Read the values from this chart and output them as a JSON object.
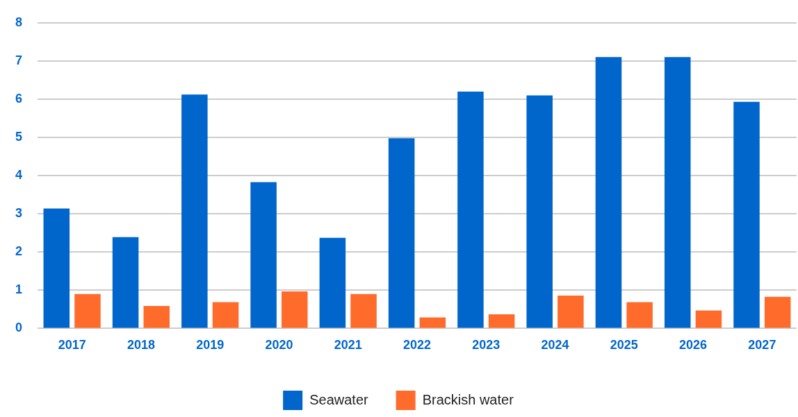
{
  "chart_data": {
    "type": "bar",
    "categories": [
      "2017",
      "2018",
      "2019",
      "2020",
      "2021",
      "2022",
      "2023",
      "2024",
      "2025",
      "2026",
      "2027"
    ],
    "series": [
      {
        "name": "Seawater",
        "color": "#0066cc",
        "values": [
          3.14,
          2.39,
          6.12,
          3.83,
          2.37,
          4.98,
          6.2,
          6.1,
          7.1,
          7.1,
          5.93
        ]
      },
      {
        "name": "Brackish water",
        "color": "#ff6b2b",
        "values": [
          0.9,
          0.59,
          0.69,
          0.97,
          0.9,
          0.29,
          0.37,
          0.86,
          0.69,
          0.47,
          0.83
        ]
      }
    ],
    "ylim": [
      0,
      8
    ],
    "yticks": [
      0,
      1,
      2,
      3,
      4,
      5,
      6,
      7,
      8
    ],
    "grid": "y",
    "legend": "bottom"
  }
}
